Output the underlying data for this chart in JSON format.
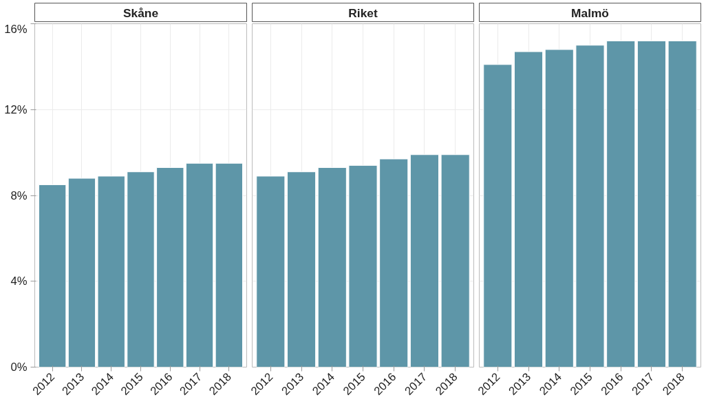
{
  "chart_data": [
    {
      "type": "bar",
      "title": "Skåne",
      "categories": [
        "2012",
        "2013",
        "2014",
        "2015",
        "2016",
        "2017",
        "2018"
      ],
      "values": [
        8.5,
        8.8,
        8.9,
        9.1,
        9.3,
        9.5,
        9.5
      ],
      "color": "#5e96a8",
      "ylim": [
        0,
        16
      ],
      "yticks": [
        {
          "value": 0,
          "label": "0%"
        },
        {
          "value": 4,
          "label": "4%"
        },
        {
          "value": 8,
          "label": "8%"
        },
        {
          "value": 12,
          "label": "12%"
        },
        {
          "value": 16,
          "label": "16%"
        }
      ],
      "grid": true
    },
    {
      "type": "bar",
      "title": "Riket",
      "categories": [
        "2012",
        "2013",
        "2014",
        "2015",
        "2016",
        "2017",
        "2018"
      ],
      "values": [
        8.9,
        9.1,
        9.3,
        9.4,
        9.7,
        9.9,
        9.9
      ],
      "color": "#5e96a8",
      "ylim": [
        0,
        16
      ],
      "yticks": [
        0,
        4,
        8,
        12,
        16
      ],
      "grid": true,
      "tick_labels": "x"
    },
    {
      "type": "bar",
      "title": "Malmö",
      "categories": [
        "2012",
        "2013",
        "2014",
        "2015",
        "2016",
        "2017",
        "2018"
      ],
      "values": [
        14.1,
        14.7,
        14.8,
        15.0,
        15.2,
        15.2,
        15.2
      ],
      "color": "#5e96a8",
      "ylim": [
        0,
        16
      ],
      "yticks": [
        0,
        4,
        8,
        12,
        16
      ],
      "grid": true,
      "tick_labels": "x"
    }
  ]
}
